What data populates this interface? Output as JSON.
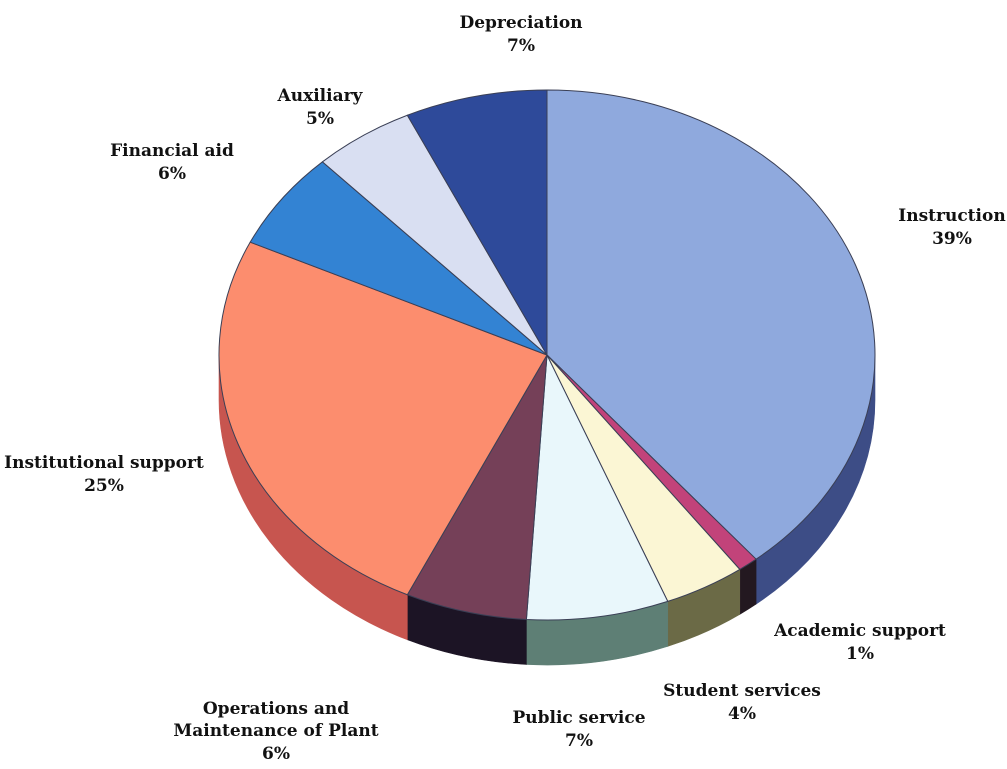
{
  "chart_data": {
    "type": "pie",
    "title": "",
    "start_angle_deg": 90,
    "direction": "clockwise",
    "slices": [
      {
        "label": "Instruction",
        "value": 39,
        "value_label": "39%",
        "color": "#8fa9dd",
        "side_color": "#3d4d86"
      },
      {
        "label": "Academic support",
        "value": 1,
        "value_label": "1%",
        "color": "#c2437a",
        "side_color": "#231820"
      },
      {
        "label": "Student services",
        "value": 4,
        "value_label": "4%",
        "color": "#fbf6d4",
        "side_color": "#6b6a46"
      },
      {
        "label": "Public service",
        "value": 7,
        "value_label": "7%",
        "color": "#e9f7fb",
        "side_color": "#5e7f75"
      },
      {
        "label": "Operations and Maintenance of Plant",
        "value": 6,
        "value_label": "6%",
        "color": "#754058",
        "side_color": "#1c1425"
      },
      {
        "label": "Institutional support",
        "value": 25,
        "value_label": "25%",
        "color": "#fc8d6e",
        "side_color": "#c7554f"
      },
      {
        "label": "Financial aid",
        "value": 6,
        "value_label": "6%",
        "color": "#3383d3",
        "side_color": "#1c4a7e"
      },
      {
        "label": "Auxiliary",
        "value": 5,
        "value_label": "5%",
        "color": "#d9dff2",
        "side_color": "#8d93ad"
      },
      {
        "label": "Depreciation",
        "value": 7,
        "value_label": "7%",
        "color": "#2e4a9a",
        "side_color": "#1a2a5e"
      }
    ]
  }
}
